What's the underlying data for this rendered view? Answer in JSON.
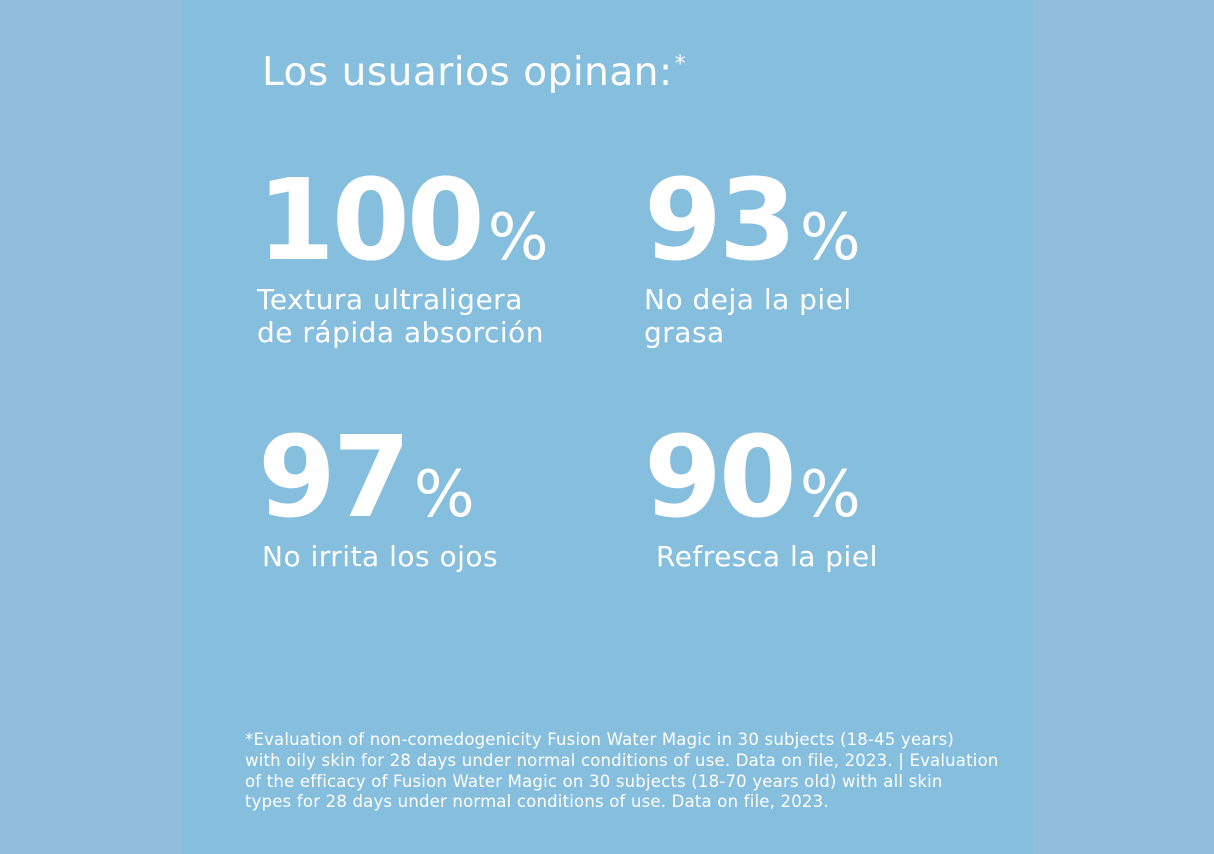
{
  "colors": {
    "outer_background": "#92bddc",
    "panel_background": "#86bedd",
    "text": "#ffffff"
  },
  "heading": {
    "text": "Los usuarios opinan:",
    "asterisk": "*"
  },
  "stats": [
    {
      "number": "100",
      "unit": "%",
      "label": "Textura ultraligera\nde rápida absorción"
    },
    {
      "number": "93",
      "unit": "%",
      "label": "No deja la piel\ngrasa"
    },
    {
      "number": "97",
      "unit": "%",
      "label": "No irrita los ojos"
    },
    {
      "number": "90",
      "unit": "%",
      "label": "Refresca la piel"
    }
  ],
  "footnote": "*Evaluation of non-comedogenicity Fusion Water Magic in 30 subjects (18-45 years)\nwith oily skin for 28 days under normal conditions of use. Data on file, 2023. | Evaluation\nof the efficacy of Fusion Water Magic on 30 subjects (18-70 years old) with all skin\ntypes for 28 days under normal conditions of use. Data on file, 2023."
}
